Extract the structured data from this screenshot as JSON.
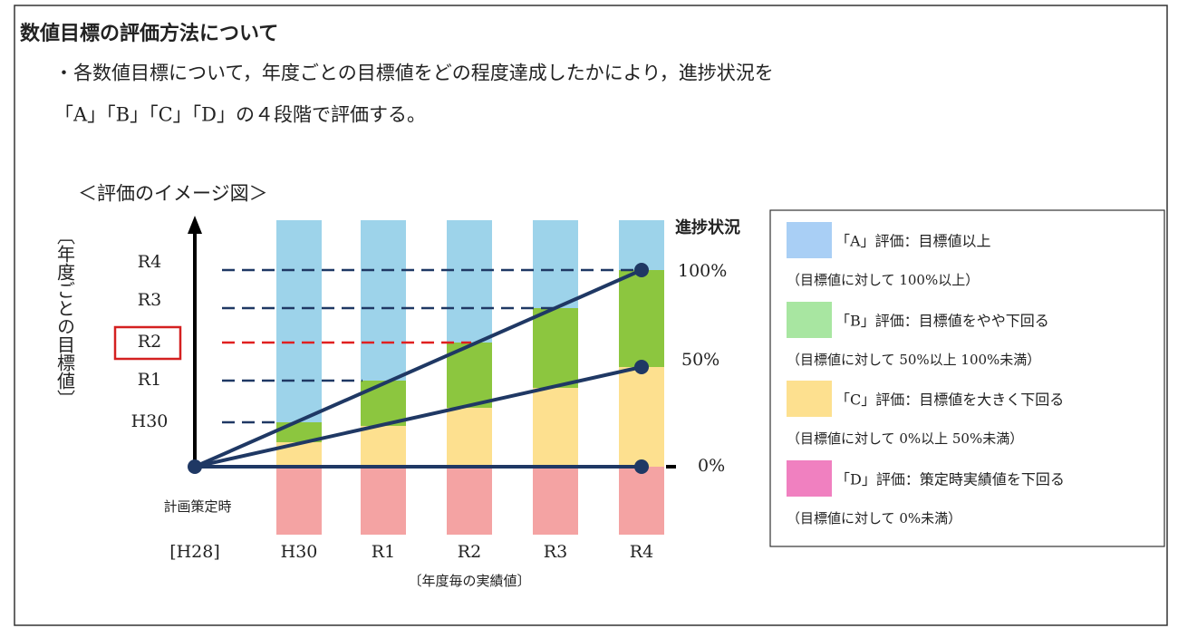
{
  "header": {
    "title": "数値目標の評価方法について"
  },
  "body": {
    "lines": [
      "・各数値目標について，年度ごとの目標値をどの程度達成したかにより，進捗状況を",
      "「A」「B」「C」「D」の４段階で評価する。"
    ]
  },
  "figure": {
    "caption": "＜評価のイメージ図＞",
    "y_axis_label": "〔年度ごとの目標値〕",
    "y_labels": [
      "R4",
      "R3",
      "R2",
      "R1",
      "H30"
    ],
    "x_labels": [
      "[H28]",
      "H30",
      "R1",
      "R2",
      "R3",
      "R4"
    ],
    "x_origin_note": "計画策定時",
    "x_axis_label": "〔年度毎の実績値〕",
    "progress_title": "進捗状況",
    "progress_labels": [
      "100%",
      "50%",
      "0%"
    ]
  },
  "legend": {
    "items": [
      {
        "label": "「A」評価：目標値以上",
        "note": "（目標値に対して 100%以上）"
      },
      {
        "label": "「B」評価：目標値をやや下回る",
        "note": "（目標値に対して 50%以上 100%未満）"
      },
      {
        "label": "「C」評価：目標値を大きく下回る",
        "note": "（目標値に対して 0%以上 50%未満）"
      },
      {
        "label": "「D」評価：策定時実績値を下回る",
        "note": "（目標値に対して 0%未満）"
      }
    ]
  }
}
